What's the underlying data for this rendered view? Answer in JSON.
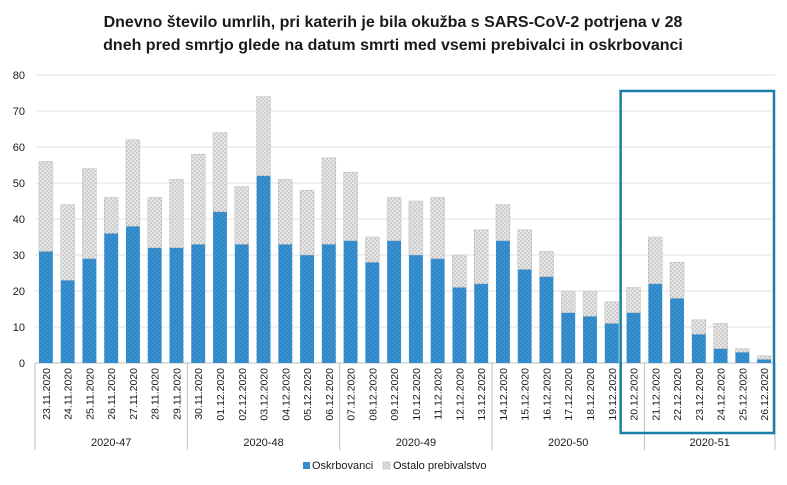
{
  "chart_data": {
    "type": "bar",
    "stacked": true,
    "title_lines": [
      "Dnevno število umrlih, pri katerih je bila okužba s SARS-CoV-2 potrjena v 28",
      "dneh pred smrtjo glede na datum smrti med vsemi prebivalci in oskrbovanci"
    ],
    "categories": [
      "23.11.2020",
      "24.11.2020",
      "25.11.2020",
      "26.11.2020",
      "27.11.2020",
      "28.11.2020",
      "29.11.2020",
      "30.11.2020",
      "01.12.2020",
      "02.12.2020",
      "03.12.2020",
      "04.12.2020",
      "05.12.2020",
      "06.12.2020",
      "07.12.2020",
      "08.12.2020",
      "09.12.2020",
      "10.12.2020",
      "11.12.2020",
      "12.12.2020",
      "13.12.2020",
      "14.12.2020",
      "15.12.2020",
      "16.12.2020",
      "17.12.2020",
      "18.12.2020",
      "19.12.2020",
      "20.12.2020",
      "21.12.2020",
      "22.12.2020",
      "23.12.2020",
      "24.12.2020",
      "25.12.2020",
      "26.12.2020"
    ],
    "series": [
      {
        "name": "Oskrbovanci",
        "color": "#2e87c8",
        "values": [
          31,
          23,
          29,
          36,
          38,
          32,
          32,
          33,
          42,
          33,
          52,
          33,
          30,
          33,
          34,
          28,
          34,
          30,
          29,
          21,
          22,
          34,
          26,
          24,
          14,
          13,
          11,
          14,
          22,
          18,
          8,
          4,
          3,
          1
        ]
      },
      {
        "name": "Ostalo prebivalstvo",
        "color": "#d9d9d9",
        "values": [
          25,
          21,
          25,
          10,
          24,
          14,
          19,
          25,
          22,
          16,
          22,
          18,
          18,
          24,
          19,
          7,
          12,
          15,
          17,
          9,
          15,
          10,
          11,
          7,
          6,
          7,
          6,
          7,
          13,
          10,
          4,
          7,
          1,
          1
        ]
      }
    ],
    "ylim": [
      0,
      80
    ],
    "yticks": [
      "0",
      "10",
      "20",
      "30",
      "40",
      "50",
      "60",
      "70",
      "80"
    ],
    "weeks": [
      {
        "label": "2020-47",
        "start": 0,
        "end": 6
      },
      {
        "label": "2020-48",
        "start": 7,
        "end": 13
      },
      {
        "label": "2020-49",
        "start": 14,
        "end": 20
      },
      {
        "label": "2020-50",
        "start": 21,
        "end": 27
      },
      {
        "label": "2020-51",
        "start": 28,
        "end": 33
      }
    ],
    "highlight": {
      "start": 27,
      "end": 33,
      "color": "#1a7fa8"
    },
    "legend_position": "bottom",
    "grid": true
  }
}
